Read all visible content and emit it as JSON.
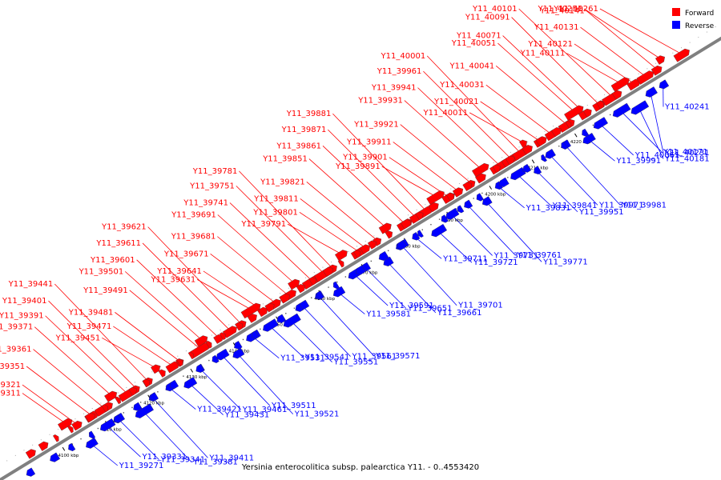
{
  "caption": "Yersinia enterocolitica subsp. palearctica Y11. - 0..4553420",
  "legend": [
    {
      "label": "Forward",
      "color": "#ff0000"
    },
    {
      "label": "Reverse",
      "color": "#0000ff"
    }
  ],
  "colors": {
    "forward": "#ff0000",
    "reverse": "#0000ff",
    "backbone": "#808080"
  },
  "ticks": [
    "4100 kbp",
    "4110 kbp",
    "4120 kbp",
    "4130 kbp",
    "4140 kbp",
    "4150 kbp",
    "4160 kbp",
    "4170 kbp",
    "4180 kbp",
    "4190 kbp",
    "4200 kbp",
    "4210 kbp",
    "4220 kbp"
  ],
  "forward_labels": [
    "Y11_39311",
    "Y11_39321",
    "Y11_39351",
    "Y11_39361",
    "Y11_39371",
    "Y11_39391",
    "Y11_39401",
    "Y11_39441",
    "Y11_39451",
    "Y11_39471",
    "Y11_39481",
    "Y11_39491",
    "Y11_39501",
    "Y11_39601",
    "Y11_39611",
    "Y11_39621",
    "Y11_39631",
    "Y11_39641",
    "Y11_39671",
    "Y11_39681",
    "Y11_39691",
    "Y11_39741",
    "Y11_39751",
    "Y11_39781",
    "Y11_39791",
    "Y11_39801",
    "Y11_39811",
    "Y11_39821",
    "Y11_39851",
    "Y11_39861",
    "Y11_39871",
    "Y11_39881",
    "Y11_39891",
    "Y11_39901",
    "Y11_39911",
    "Y11_39921",
    "Y11_39931",
    "Y11_39941",
    "Y11_39961",
    "Y11_40001",
    "Y11_40011",
    "Y11_40021",
    "Y11_40031",
    "Y11_40041",
    "Y11_40051",
    "Y11_40071",
    "Y11_40091",
    "Y11_40101",
    "Y11_40111",
    "Y11_40121",
    "Y11_40131",
    "Y11_40141",
    "Y11_40251",
    "Y11_40261"
  ],
  "reverse_labels": [
    "Y11_39271",
    "Y11_39331",
    "Y11_39341",
    "Y11_39381",
    "Y11_39411",
    "Y11_39421",
    "Y11_39431",
    "Y11_39461",
    "Y11_39511",
    "Y11_39521",
    "Y11_39531",
    "Y11_39541",
    "Y11_39551",
    "Y11_39561",
    "Y11_39571",
    "Y11_39581",
    "Y11_39591",
    "Y11_39651",
    "Y11_39661",
    "Y11_39701",
    "Y11_39711",
    "Y11_39721",
    "Y11_39731",
    "Y11_39761",
    "Y11_39771",
    "Y11_39831",
    "Y11_39841",
    "Y11_39951",
    "Y11_39971",
    "Y11_39981",
    "Y11_39991",
    "Y11_40061",
    "Y11_40171",
    "Y11_40181",
    "Y11_40231",
    "Y11_40241"
  ]
}
